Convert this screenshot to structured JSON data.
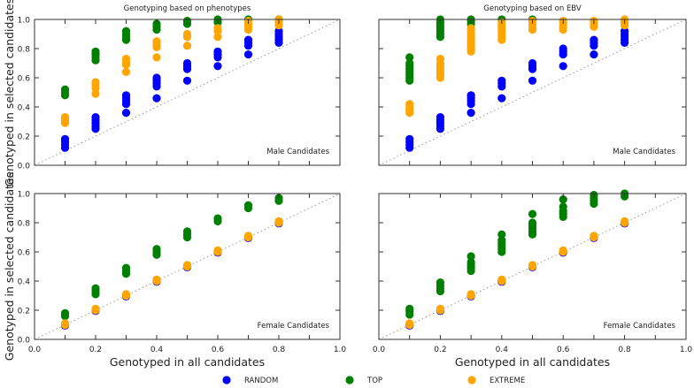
{
  "chart_data": [
    {
      "type": "scatter",
      "title": "Genotyping based on phenotypes",
      "annotation": "Male Candidates",
      "xlabel": "",
      "ylabel": "Genotyped in selected candidates",
      "xlim": [
        0,
        1
      ],
      "ylim": [
        0,
        1
      ],
      "show_diagonal": true,
      "series": [
        {
          "name": "RANDOM",
          "points": [
            [
              0.1,
              [
                0.12,
                0.14,
                0.16,
                0.18
              ]
            ],
            [
              0.2,
              [
                0.25,
                0.27,
                0.29,
                0.31,
                0.33
              ]
            ],
            [
              0.3,
              [
                0.36,
                0.42,
                0.44,
                0.46,
                0.48
              ]
            ],
            [
              0.4,
              [
                0.46,
                0.54,
                0.56,
                0.58,
                0.6
              ]
            ],
            [
              0.5,
              [
                0.58,
                0.66,
                0.68,
                0.7
              ]
            ],
            [
              0.6,
              [
                0.68,
                0.74,
                0.76,
                0.78
              ]
            ],
            [
              0.7,
              [
                0.76,
                0.82,
                0.84,
                0.86
              ]
            ],
            [
              0.8,
              [
                0.84,
                0.86,
                0.88,
                0.9,
                0.92
              ]
            ]
          ]
        },
        {
          "name": "TOP",
          "points": [
            [
              0.1,
              [
                0.48,
                0.5,
                0.52
              ]
            ],
            [
              0.2,
              [
                0.72,
                0.74,
                0.76,
                0.78
              ]
            ],
            [
              0.3,
              [
                0.86,
                0.88,
                0.9,
                0.92
              ]
            ],
            [
              0.4,
              [
                0.93,
                0.95,
                0.97
              ]
            ],
            [
              0.5,
              [
                0.97,
                0.99
              ]
            ],
            [
              0.6,
              [
                0.98,
                1.0
              ]
            ],
            [
              0.7,
              [
                1.0
              ]
            ],
            [
              0.8,
              [
                1.0
              ]
            ]
          ]
        },
        {
          "name": "EXTREME",
          "points": [
            [
              0.1,
              [
                0.29,
                0.31,
                0.33
              ]
            ],
            [
              0.2,
              [
                0.49,
                0.53,
                0.55,
                0.57
              ]
            ],
            [
              0.3,
              [
                0.64,
                0.69,
                0.71,
                0.73
              ]
            ],
            [
              0.4,
              [
                0.74,
                0.81,
                0.83,
                0.85
              ]
            ],
            [
              0.5,
              [
                0.82,
                0.88,
                0.9
              ]
            ],
            [
              0.6,
              [
                0.88,
                0.92,
                0.94
              ]
            ],
            [
              0.7,
              [
                0.93,
                0.95,
                0.97,
                0.99
              ]
            ],
            [
              0.8,
              [
                0.96,
                0.98,
                1.0
              ]
            ]
          ]
        }
      ]
    },
    {
      "type": "scatter",
      "title": "Genotyping based on EBV",
      "annotation": "Male Candidates",
      "xlabel": "",
      "ylabel": "",
      "xlim": [
        0,
        1
      ],
      "ylim": [
        0,
        1
      ],
      "show_diagonal": true,
      "series": [
        {
          "name": "RANDOM",
          "points": [
            [
              0.1,
              [
                0.12,
                0.14,
                0.16,
                0.18
              ]
            ],
            [
              0.2,
              [
                0.25,
                0.27,
                0.29,
                0.31,
                0.33
              ]
            ],
            [
              0.3,
              [
                0.36,
                0.42,
                0.44,
                0.46,
                0.48
              ]
            ],
            [
              0.4,
              [
                0.46,
                0.54,
                0.56,
                0.58
              ]
            ],
            [
              0.5,
              [
                0.58,
                0.66,
                0.68,
                0.7
              ]
            ],
            [
              0.6,
              [
                0.68,
                0.76,
                0.78,
                0.8
              ]
            ],
            [
              0.7,
              [
                0.76,
                0.82,
                0.84,
                0.86
              ]
            ],
            [
              0.8,
              [
                0.84,
                0.86,
                0.88,
                0.9,
                0.92
              ]
            ]
          ]
        },
        {
          "name": "TOP",
          "points": [
            [
              0.1,
              [
                0.58,
                0.6,
                0.62,
                0.64,
                0.66,
                0.68,
                0.7,
                0.74
              ]
            ],
            [
              0.2,
              [
                0.88,
                0.9,
                0.92,
                0.94,
                0.96,
                0.98,
                1.0
              ]
            ],
            [
              0.3,
              [
                0.97,
                0.99,
                1.0
              ]
            ],
            [
              0.4,
              [
                1.0
              ]
            ],
            [
              0.5,
              [
                1.0
              ]
            ]
          ]
        },
        {
          "name": "EXTREME",
          "points": [
            [
              0.1,
              [
                0.36,
                0.38,
                0.4,
                0.42
              ]
            ],
            [
              0.2,
              [
                0.6,
                0.62,
                0.64,
                0.66,
                0.68,
                0.7,
                0.73
              ]
            ],
            [
              0.3,
              [
                0.78,
                0.8,
                0.82,
                0.84,
                0.86,
                0.88,
                0.9,
                0.92,
                0.94
              ]
            ],
            [
              0.4,
              [
                0.86,
                0.88,
                0.9,
                0.92,
                0.94,
                0.96,
                0.98
              ]
            ],
            [
              0.5,
              [
                0.93,
                0.95,
                0.97,
                0.99
              ]
            ],
            [
              0.6,
              [
                0.93,
                0.95,
                0.97,
                0.99
              ]
            ],
            [
              0.7,
              [
                0.95,
                0.97,
                0.99
              ]
            ],
            [
              0.8,
              [
                0.96,
                0.98,
                1.0
              ]
            ]
          ]
        }
      ]
    },
    {
      "type": "scatter",
      "title": "",
      "annotation": "Female Candidates",
      "xlabel": "Genotyped in all candidates",
      "ylabel": "Genotyped in selected candidates",
      "xlim": [
        0,
        1
      ],
      "ylim": [
        0,
        1
      ],
      "show_diagonal": true,
      "series": [
        {
          "name": "RANDOM",
          "points": [
            [
              0.1,
              [
                0.095,
                0.1
              ]
            ],
            [
              0.2,
              [
                0.195,
                0.2
              ]
            ],
            [
              0.3,
              [
                0.295,
                0.3
              ]
            ],
            [
              0.4,
              [
                0.395,
                0.4
              ]
            ],
            [
              0.5,
              [
                0.495,
                0.5
              ]
            ],
            [
              0.6,
              [
                0.595,
                0.6
              ]
            ],
            [
              0.7,
              [
                0.695,
                0.7
              ]
            ],
            [
              0.8,
              [
                0.795,
                0.8
              ]
            ]
          ]
        },
        {
          "name": "TOP",
          "points": [
            [
              0.1,
              [
                0.16,
                0.18
              ]
            ],
            [
              0.2,
              [
                0.31,
                0.33,
                0.35
              ]
            ],
            [
              0.3,
              [
                0.45,
                0.47,
                0.49
              ]
            ],
            [
              0.4,
              [
                0.58,
                0.6,
                0.62
              ]
            ],
            [
              0.5,
              [
                0.7,
                0.72,
                0.74
              ]
            ],
            [
              0.6,
              [
                0.81,
                0.83
              ]
            ],
            [
              0.7,
              [
                0.9,
                0.92
              ]
            ],
            [
              0.8,
              [
                0.95,
                0.97
              ]
            ]
          ]
        },
        {
          "name": "EXTREME",
          "points": [
            [
              0.1,
              [
                0.1,
                0.11
              ]
            ],
            [
              0.2,
              [
                0.2,
                0.21
              ]
            ],
            [
              0.3,
              [
                0.3,
                0.31
              ]
            ],
            [
              0.4,
              [
                0.4,
                0.41
              ]
            ],
            [
              0.5,
              [
                0.5,
                0.51
              ]
            ],
            [
              0.6,
              [
                0.6,
                0.61
              ]
            ],
            [
              0.7,
              [
                0.7,
                0.71
              ]
            ],
            [
              0.8,
              [
                0.8,
                0.81
              ]
            ]
          ]
        }
      ]
    },
    {
      "type": "scatter",
      "title": "",
      "annotation": "Female Candidates",
      "xlabel": "Genotyped in all candidates",
      "ylabel": "",
      "xlim": [
        0,
        1
      ],
      "ylim": [
        0,
        1
      ],
      "show_diagonal": true,
      "series": [
        {
          "name": "RANDOM",
          "points": [
            [
              0.1,
              [
                0.095,
                0.1
              ]
            ],
            [
              0.2,
              [
                0.195,
                0.2
              ]
            ],
            [
              0.3,
              [
                0.295,
                0.3
              ]
            ],
            [
              0.4,
              [
                0.395,
                0.4
              ]
            ],
            [
              0.5,
              [
                0.495,
                0.5
              ]
            ],
            [
              0.6,
              [
                0.595,
                0.6
              ]
            ],
            [
              0.7,
              [
                0.695,
                0.7
              ]
            ],
            [
              0.8,
              [
                0.795,
                0.8
              ]
            ]
          ]
        },
        {
          "name": "TOP",
          "points": [
            [
              0.1,
              [
                0.17,
                0.19,
                0.21
              ]
            ],
            [
              0.2,
              [
                0.33,
                0.35,
                0.37,
                0.39
              ]
            ],
            [
              0.3,
              [
                0.47,
                0.49,
                0.51,
                0.53,
                0.57
              ]
            ],
            [
              0.4,
              [
                0.6,
                0.62,
                0.64,
                0.66,
                0.68,
                0.72
              ]
            ],
            [
              0.5,
              [
                0.72,
                0.74,
                0.76,
                0.78,
                0.8,
                0.86
              ]
            ],
            [
              0.6,
              [
                0.84,
                0.86,
                0.88,
                0.91,
                0.96
              ]
            ],
            [
              0.7,
              [
                0.93,
                0.95,
                0.97,
                0.99
              ]
            ],
            [
              0.8,
              [
                0.98,
                1.0
              ]
            ]
          ]
        },
        {
          "name": "EXTREME",
          "points": [
            [
              0.1,
              [
                0.1,
                0.11
              ]
            ],
            [
              0.2,
              [
                0.2,
                0.21
              ]
            ],
            [
              0.3,
              [
                0.3,
                0.31
              ]
            ],
            [
              0.4,
              [
                0.4,
                0.41
              ]
            ],
            [
              0.5,
              [
                0.5,
                0.51
              ]
            ],
            [
              0.6,
              [
                0.6,
                0.61
              ]
            ],
            [
              0.7,
              [
                0.7,
                0.71
              ]
            ],
            [
              0.8,
              [
                0.8,
                0.81
              ]
            ]
          ]
        }
      ]
    }
  ],
  "ticks": [
    "0.0",
    "0.2",
    "0.4",
    "0.6",
    "0.8",
    "1.0"
  ],
  "legend": [
    {
      "name": "RANDOM",
      "color": "#0000ff"
    },
    {
      "name": "TOP",
      "color": "#008000"
    },
    {
      "name": "EXTREME",
      "color": "#ffa500"
    }
  ]
}
